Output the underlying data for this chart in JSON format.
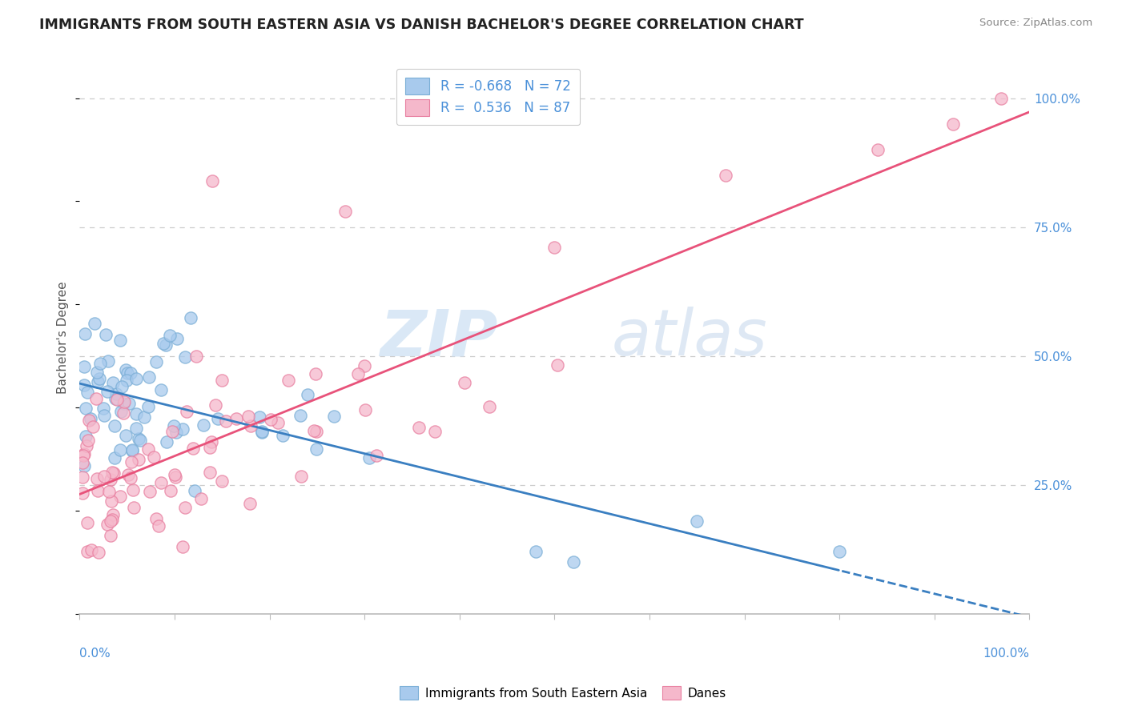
{
  "title": "IMMIGRANTS FROM SOUTH EASTERN ASIA VS DANISH BACHELOR'S DEGREE CORRELATION CHART",
  "source": "Source: ZipAtlas.com",
  "ylabel": "Bachelor's Degree",
  "legend_blue_label": "Immigrants from South Eastern Asia",
  "legend_pink_label": "Danes",
  "R_blue": -0.668,
  "N_blue": 72,
  "R_pink": 0.536,
  "N_pink": 87,
  "blue_color": "#A8CAED",
  "pink_color": "#F5B8CB",
  "blue_edge_color": "#7AAED6",
  "pink_edge_color": "#E87FA0",
  "blue_line_color": "#3A7FC1",
  "pink_line_color": "#E8527A",
  "watermark_zip_color": "#D0DFF0",
  "watermark_atlas_color": "#C5D5E8",
  "title_color": "#222222",
  "source_color": "#888888",
  "ylabel_color": "#555555",
  "tick_label_color": "#4A90D9",
  "grid_color": "#CCCCCC",
  "axis_color": "#BBBBBB"
}
